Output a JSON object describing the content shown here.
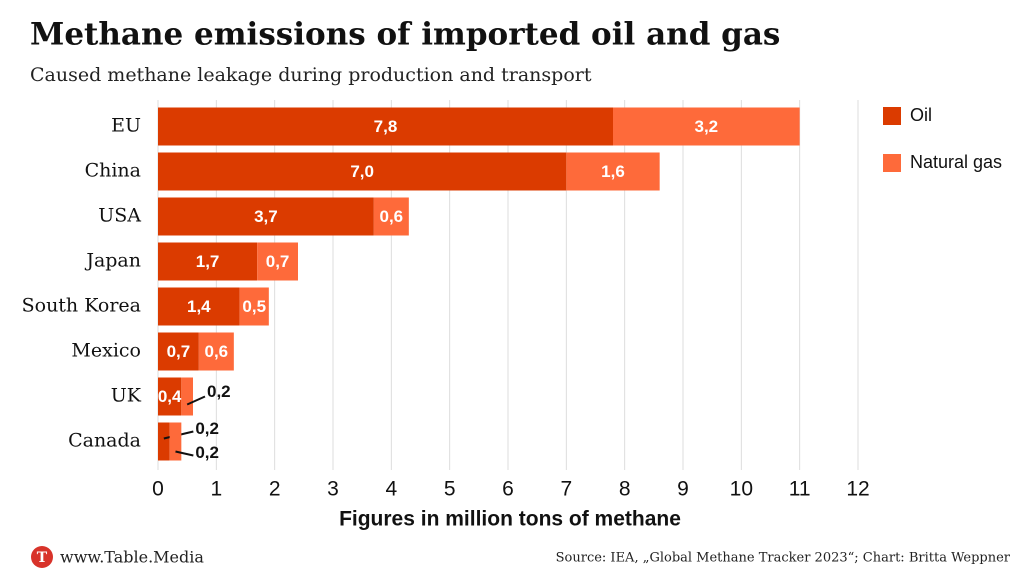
{
  "chart_data": {
    "type": "stacked-bar-horizontal",
    "title": "Methane emissions of imported oil and gas",
    "subtitle": "Caused methane leakage during production and transport",
    "x_label": "Figures in million tons of methane",
    "categories": [
      "EU",
      "China",
      "USA",
      "Japan",
      "South Korea",
      "Mexico",
      "UK",
      "Canada"
    ],
    "series": [
      {
        "name": "Oil",
        "color": "#db3b00",
        "values": [
          7.8,
          7.0,
          3.7,
          1.7,
          1.4,
          0.7,
          0.4,
          0.2
        ],
        "value_labels": [
          "7,8",
          "7,0",
          "3,7",
          "1,7",
          "1,4",
          "0,7",
          "0,4",
          "0,2"
        ]
      },
      {
        "name": "Natural gas",
        "color": "#fe6a3a",
        "values": [
          3.2,
          1.6,
          0.6,
          0.7,
          0.5,
          0.6,
          0.2,
          0.2
        ],
        "value_labels": [
          "3,2",
          "1,6",
          "0,6",
          "0,7",
          "0,5",
          "0,6",
          "0,2",
          "0,2"
        ]
      }
    ],
    "xlim": [
      0,
      12
    ],
    "xticks": [
      0,
      1,
      2,
      3,
      4,
      5,
      6,
      7,
      8,
      9,
      10,
      11,
      12
    ],
    "grid": true,
    "legend": "top-right"
  },
  "footer": {
    "logo": "T",
    "brand": "www.Table.Media",
    "source": "Source: IEA, „Global Methane Tracker 2023“; Chart: Britta Weppner"
  }
}
